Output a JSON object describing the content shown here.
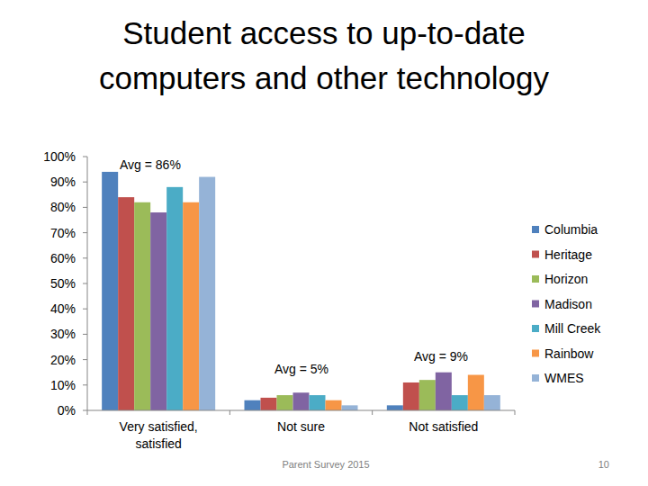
{
  "chart_data": {
    "type": "bar",
    "title": "Student access to up-to-date computers and other technology",
    "categories": [
      "Very satisfied, satisfied",
      "Not sure",
      "Not satisfied"
    ],
    "series": [
      {
        "name": "Columbia",
        "color": "#4f81bd",
        "values": [
          94,
          4,
          2
        ]
      },
      {
        "name": "Heritage",
        "color": "#c0504d",
        "values": [
          84,
          5,
          11
        ]
      },
      {
        "name": "Horizon",
        "color": "#9bbb59",
        "values": [
          82,
          6,
          12
        ]
      },
      {
        "name": "Madison",
        "color": "#8064a2",
        "values": [
          78,
          7,
          15
        ]
      },
      {
        "name": "Mill Creek",
        "color": "#4bacc6",
        "values": [
          88,
          6,
          6
        ]
      },
      {
        "name": "Rainbow",
        "color": "#f79646",
        "values": [
          82,
          4,
          14
        ]
      },
      {
        "name": "WMES",
        "color": "#95b3d7",
        "values": [
          92,
          2,
          6
        ]
      }
    ],
    "ylim": [
      0,
      100
    ],
    "yticks": [
      {
        "value": 0,
        "label": "0%"
      },
      {
        "value": 10,
        "label": "10%"
      },
      {
        "value": 20,
        "label": "20%"
      },
      {
        "value": 30,
        "label": "30%"
      },
      {
        "value": 40,
        "label": "40%"
      },
      {
        "value": 50,
        "label": "50%"
      },
      {
        "value": 60,
        "label": "60%"
      },
      {
        "value": 70,
        "label": "70%"
      },
      {
        "value": 80,
        "label": "80%"
      },
      {
        "value": 90,
        "label": "90%"
      },
      {
        "value": 100,
        "label": "100%"
      }
    ],
    "grid": false,
    "legend": "right",
    "annotations": [
      {
        "text": "Avg = 86%"
      },
      {
        "text": "Avg = 5%"
      },
      {
        "text": "Avg = 9%"
      }
    ],
    "source": "Parent Survey 2015",
    "page": "10"
  }
}
